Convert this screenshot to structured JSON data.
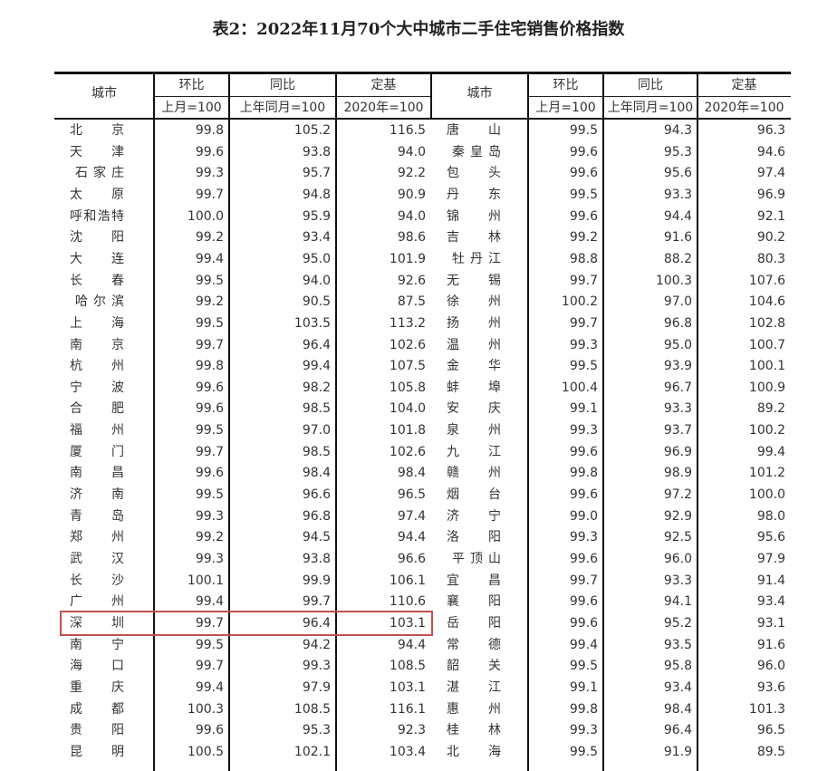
{
  "title": "表2：2022年11月70个大中城市二手住宅销售价格指数",
  "headers": {
    "city": "城市",
    "mom": "环比",
    "mom_base": "上月=100",
    "yoy": "同比",
    "yoy_base": "上年同月=100",
    "fixed": "定基",
    "fixed_base": "2020年=100"
  },
  "highlight_color": "#c0504d",
  "highlighted_city": "深圳",
  "left_rows": [
    [
      "北京",
      "99.8",
      "105.2",
      "116.5"
    ],
    [
      "天津",
      "99.6",
      "93.8",
      "94.0"
    ],
    [
      "石家庄",
      "99.3",
      "95.7",
      "92.2"
    ],
    [
      "太原",
      "99.7",
      "94.8",
      "90.9"
    ],
    [
      "呼和浩特",
      "100.0",
      "95.9",
      "94.0"
    ],
    [
      "沈阳",
      "99.2",
      "93.4",
      "98.6"
    ],
    [
      "大连",
      "99.4",
      "95.0",
      "101.9"
    ],
    [
      "长春",
      "99.5",
      "94.0",
      "92.6"
    ],
    [
      "哈尔滨",
      "99.2",
      "90.5",
      "87.5"
    ],
    [
      "上海",
      "99.5",
      "103.5",
      "113.2"
    ],
    [
      "南京",
      "99.7",
      "96.4",
      "102.6"
    ],
    [
      "杭州",
      "99.8",
      "99.4",
      "107.5"
    ],
    [
      "宁波",
      "99.6",
      "98.2",
      "105.8"
    ],
    [
      "合肥",
      "99.6",
      "98.5",
      "104.0"
    ],
    [
      "福州",
      "99.5",
      "97.0",
      "101.8"
    ],
    [
      "厦门",
      "99.7",
      "98.5",
      "102.6"
    ],
    [
      "南昌",
      "99.6",
      "98.4",
      "98.4"
    ],
    [
      "济南",
      "99.5",
      "96.6",
      "96.5"
    ],
    [
      "青岛",
      "99.3",
      "96.8",
      "97.4"
    ],
    [
      "郑州",
      "99.2",
      "94.5",
      "94.4"
    ],
    [
      "武汉",
      "99.3",
      "93.8",
      "96.6"
    ],
    [
      "长沙",
      "100.1",
      "99.9",
      "106.1"
    ],
    [
      "广州",
      "99.4",
      "99.7",
      "110.6"
    ],
    [
      "深圳",
      "99.7",
      "96.4",
      "103.1"
    ],
    [
      "南宁",
      "99.5",
      "94.2",
      "94.4"
    ],
    [
      "海口",
      "99.7",
      "99.3",
      "108.5"
    ],
    [
      "重庆",
      "99.4",
      "97.9",
      "103.1"
    ],
    [
      "成都",
      "100.3",
      "108.5",
      "116.1"
    ],
    [
      "贵阳",
      "99.6",
      "95.3",
      "92.3"
    ],
    [
      "昆明",
      "100.5",
      "102.1",
      "103.4"
    ]
  ],
  "right_rows": [
    [
      "唐山",
      "99.5",
      "94.3",
      "96.3"
    ],
    [
      "秦皇岛",
      "99.6",
      "95.3",
      "94.6"
    ],
    [
      "包头",
      "99.6",
      "95.6",
      "97.4"
    ],
    [
      "丹东",
      "99.5",
      "93.3",
      "96.9"
    ],
    [
      "锦州",
      "99.6",
      "94.4",
      "92.1"
    ],
    [
      "吉林",
      "99.2",
      "91.6",
      "90.2"
    ],
    [
      "牡丹江",
      "98.8",
      "88.2",
      "80.3"
    ],
    [
      "无锡",
      "99.7",
      "100.3",
      "107.6"
    ],
    [
      "徐州",
      "100.2",
      "97.0",
      "104.6"
    ],
    [
      "扬州",
      "99.7",
      "96.8",
      "102.8"
    ],
    [
      "温州",
      "99.3",
      "95.0",
      "100.7"
    ],
    [
      "金华",
      "99.5",
      "93.9",
      "100.1"
    ],
    [
      "蚌埠",
      "100.4",
      "96.7",
      "100.9"
    ],
    [
      "安庆",
      "99.1",
      "93.3",
      "89.2"
    ],
    [
      "泉州",
      "99.3",
      "93.7",
      "100.2"
    ],
    [
      "九江",
      "99.6",
      "96.9",
      "99.4"
    ],
    [
      "赣州",
      "99.8",
      "98.9",
      "101.2"
    ],
    [
      "烟台",
      "99.6",
      "97.2",
      "100.0"
    ],
    [
      "济宁",
      "99.0",
      "92.9",
      "98.0"
    ],
    [
      "洛阳",
      "99.3",
      "92.5",
      "95.6"
    ],
    [
      "平顶山",
      "99.6",
      "96.0",
      "97.9"
    ],
    [
      "宜昌",
      "99.7",
      "93.3",
      "91.4"
    ],
    [
      "襄阳",
      "99.6",
      "94.1",
      "93.4"
    ],
    [
      "岳阳",
      "99.6",
      "95.2",
      "93.1"
    ],
    [
      "常德",
      "99.4",
      "93.5",
      "91.6"
    ],
    [
      "韶关",
      "99.5",
      "95.8",
      "96.0"
    ],
    [
      "湛江",
      "99.1",
      "93.4",
      "93.6"
    ],
    [
      "惠州",
      "99.8",
      "98.4",
      "101.3"
    ],
    [
      "桂林",
      "99.3",
      "96.4",
      "96.5"
    ],
    [
      "北海",
      "99.5",
      "91.9",
      "89.5"
    ]
  ]
}
